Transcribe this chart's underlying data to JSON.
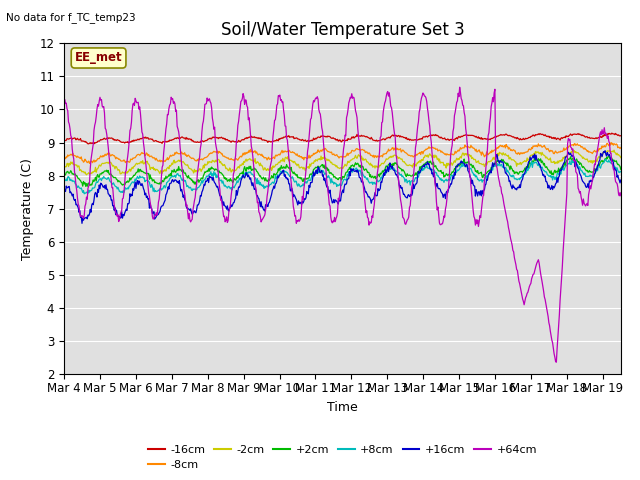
{
  "title": "Soil/Water Temperature Set 3",
  "xlabel": "Time",
  "ylabel": "Temperature (C)",
  "ylim": [
    2.0,
    12.0
  ],
  "yticks": [
    2.0,
    3.0,
    4.0,
    5.0,
    6.0,
    7.0,
    8.0,
    9.0,
    10.0,
    11.0,
    12.0
  ],
  "num_days": 15.5,
  "num_points": 744,
  "no_data_text": "No data for f_TC_temp23",
  "ee_met_label": "EE_met",
  "background_color": "#e0e0e0",
  "grid_color": "#ffffff",
  "xtick_labels": [
    "Mar 4",
    "Mar 5",
    "Mar 6",
    "Mar 7",
    "Mar 8",
    "Mar 9",
    "Mar 10",
    "Mar 11",
    "Mar 12",
    "Mar 13",
    "Mar 14",
    "Mar 15",
    "Mar 16",
    "Mar 17",
    "Mar 18",
    "Mar 19"
  ],
  "series": [
    {
      "label": "-16cm",
      "color": "#cc0000",
      "base": 9.05,
      "amp": 0.07,
      "trend": 0.15,
      "phase": 0.0,
      "noise": 0.015
    },
    {
      "label": "-8cm",
      "color": "#ff8800",
      "base": 8.5,
      "amp": 0.12,
      "trend": 0.35,
      "phase": 0.2,
      "noise": 0.025
    },
    {
      "label": "-2cm",
      "color": "#cccc00",
      "base": 8.2,
      "amp": 0.16,
      "trend": 0.4,
      "phase": 0.4,
      "noise": 0.03
    },
    {
      "label": "+2cm",
      "color": "#00bb00",
      "base": 7.9,
      "amp": 0.2,
      "trend": 0.45,
      "phase": 0.6,
      "noise": 0.035
    },
    {
      "label": "+8cm",
      "color": "#00bbbb",
      "base": 7.68,
      "amp": 0.22,
      "trend": 0.55,
      "phase": 0.8,
      "noise": 0.035
    },
    {
      "label": "+16cm",
      "color": "#0000cc",
      "base": 7.15,
      "amp": 0.5,
      "trend": 1.1,
      "phase": 1.1,
      "noise": 0.06
    },
    {
      "label": "+64cm",
      "color": "#bb00bb",
      "base": 8.5,
      "amp": 1.75,
      "trend": 0.0,
      "phase": 1.5,
      "noise": 0.08
    }
  ],
  "purple_crash_day": 15.5,
  "purple_crash_min": 2.3,
  "purple_crash_day2": 17.0,
  "purple_crash_min2": 4.1,
  "title_fontsize": 12,
  "label_fontsize": 9,
  "tick_fontsize": 8.5,
  "figwidth": 6.4,
  "figheight": 4.8,
  "dpi": 100
}
